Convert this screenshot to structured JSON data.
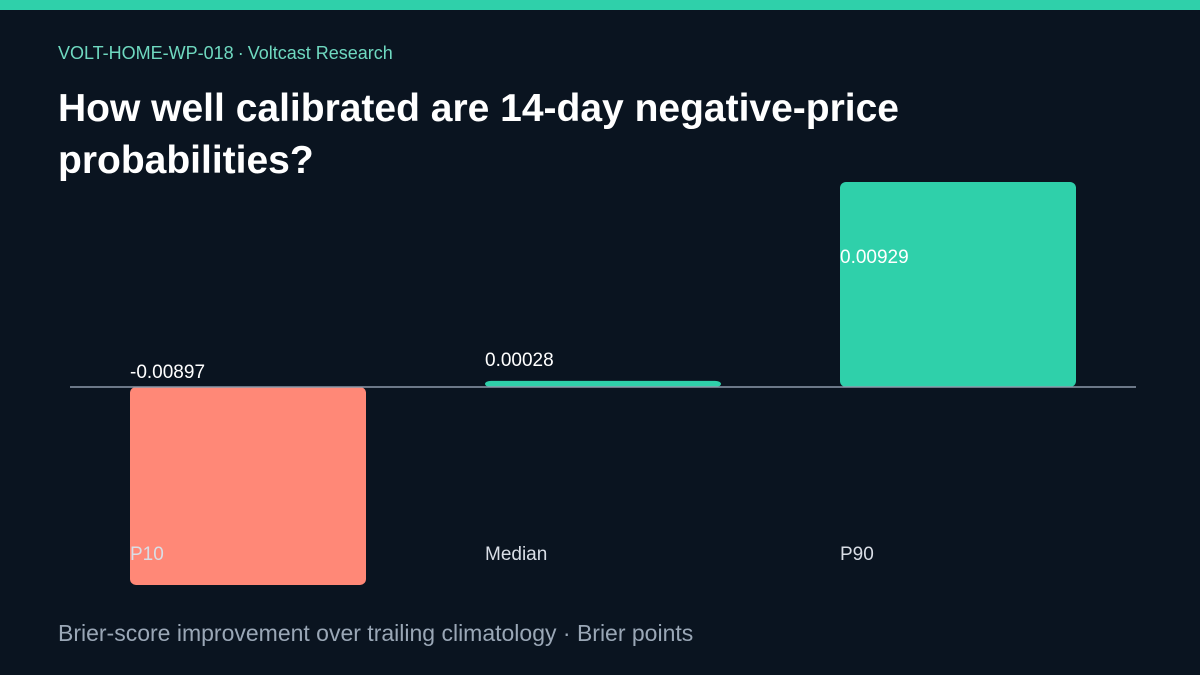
{
  "header": {
    "code": "VOLT-HOME-WP-018",
    "separator": "·",
    "org": "Voltcast Research",
    "title": "How well calibrated are 14-day negative-price probabilities?"
  },
  "footer": {
    "text": "Brier-score improvement over trailing climatology · Brier points"
  },
  "colors": {
    "background": "#0a1420",
    "accent": "#2fd0aa",
    "positive": "#2fd0aa",
    "negative": "#ff8877",
    "baseline": "#8c9aab",
    "label": "#d9dee6"
  },
  "chart_data": {
    "type": "bar",
    "categories": [
      "P10",
      "Median",
      "P90"
    ],
    "values": [
      -0.00897,
      0.00028,
      0.00929
    ],
    "value_labels": [
      "-0.00897",
      "0.00028",
      "0.00929"
    ],
    "title": "",
    "xlabel": "",
    "ylabel": "",
    "grid": false,
    "legend": "none"
  }
}
